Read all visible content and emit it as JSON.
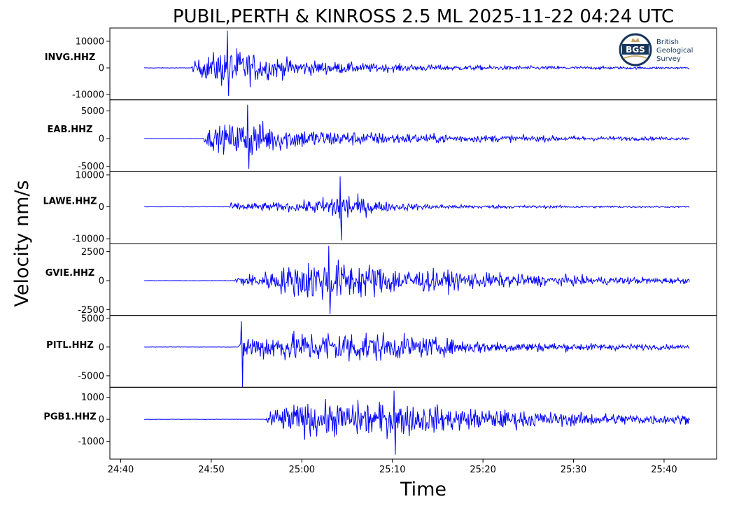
{
  "title": "PUBIL,PERTH & KINROSS 2.5 ML   2025-11-22 04:24 UTC",
  "ylabel": "Velocity nm/s",
  "xlabel": "Time",
  "logo": {
    "mark": "BGS",
    "lines": [
      "British",
      "Geological",
      "Survey"
    ]
  },
  "colors": {
    "trace": "#0000ff",
    "frame": "#000000",
    "logo_ring": "#17365d",
    "logo_accent": "#c8a96a"
  },
  "chart_data": {
    "type": "line",
    "x_unit": "minutes:seconds after 04:00 UTC",
    "xlim": [
      "24:38.8",
      "25:45.8"
    ],
    "x_ticks": [
      "24:40",
      "24:50",
      "25:00",
      "25:10",
      "25:20",
      "25:30",
      "25:40"
    ],
    "trace_start": "24:42.6",
    "trace_end": "25:42.8",
    "series": [
      {
        "name": "INVG.HHZ",
        "ylim": [
          -12000,
          15000
        ],
        "y_ticks": [
          10000,
          0,
          -10000
        ],
        "y_tick_labels": [
          "10000",
          "0",
          "-10000"
        ],
        "arrival": "24:47.8",
        "peak_time": "24:51.8",
        "peak_max": 14000,
        "peak_min": -10500,
        "envelope": [
          [
            0,
            250
          ],
          [
            0.3,
            2500
          ],
          [
            4,
            9000
          ],
          [
            8,
            5000
          ],
          [
            13,
            3000
          ],
          [
            20,
            1800
          ],
          [
            30,
            1000
          ],
          [
            45,
            600
          ],
          [
            55,
            400
          ]
        ]
      },
      {
        "name": "EAB.HHZ",
        "ylim": [
          -6000,
          7000
        ],
        "y_ticks": [
          5000,
          0,
          -5000
        ],
        "y_tick_labels": [
          "5000",
          "0",
          "-5000"
        ],
        "arrival": "24:49.1",
        "peak_time": "24:54.0",
        "peak_max": 6100,
        "peak_min": -5500,
        "envelope": [
          [
            0,
            60
          ],
          [
            0.4,
            1800
          ],
          [
            5,
            3800
          ],
          [
            9,
            2300
          ],
          [
            15,
            1500
          ],
          [
            25,
            900
          ],
          [
            40,
            500
          ],
          [
            54,
            280
          ]
        ]
      },
      {
        "name": "LAWE.HHZ",
        "ylim": [
          -11500,
          11000
        ],
        "y_ticks": [
          10000,
          0,
          -10000
        ],
        "y_tick_labels": [
          "10000",
          "0",
          "-10000"
        ],
        "arrival": "24:51.9",
        "peak_time": "25:04.2",
        "peak_max": 9500,
        "peak_min": -10500,
        "envelope": [
          [
            0,
            80
          ],
          [
            0.3,
            1300
          ],
          [
            8,
            1600
          ],
          [
            11,
            3500
          ],
          [
            12.3,
            7000
          ],
          [
            14,
            3500
          ],
          [
            18,
            1400
          ],
          [
            25,
            700
          ],
          [
            40,
            350
          ],
          [
            51,
            250
          ]
        ]
      },
      {
        "name": "GVIE.HHZ",
        "ylim": [
          -3000,
          3200
        ],
        "y_ticks": [
          2500,
          0,
          -2500
        ],
        "y_tick_labels": [
          "2500",
          "0",
          "-2500"
        ],
        "arrival": "24:52.3",
        "peak_time": "25:03.0",
        "peak_max": 3000,
        "peak_min": -2900,
        "envelope": [
          [
            0,
            40
          ],
          [
            0.5,
            450
          ],
          [
            4,
            900
          ],
          [
            9,
            2000
          ],
          [
            14,
            1700
          ],
          [
            20,
            1100
          ],
          [
            30,
            650
          ],
          [
            40,
            400
          ],
          [
            50,
            280
          ]
        ]
      },
      {
        "name": "PITL.HHZ",
        "ylim": [
          -7000,
          5500
        ],
        "y_ticks": [
          5000,
          0,
          -5000
        ],
        "y_tick_labels": [
          "5000",
          "0",
          "-5000"
        ],
        "arrival": "24:53.0",
        "peak_time": "24:53.3",
        "peak_max": 4500,
        "peak_min": -7000,
        "envelope": [
          [
            0,
            80
          ],
          [
            0.6,
            2400
          ],
          [
            5,
            2600
          ],
          [
            12,
            3300
          ],
          [
            17,
            2400
          ],
          [
            25,
            1300
          ],
          [
            35,
            800
          ],
          [
            49,
            400
          ]
        ]
      },
      {
        "name": "PGB1.HHZ",
        "ylim": [
          -1800,
          1450
        ],
        "y_ticks": [
          1000,
          0,
          -1000
        ],
        "y_tick_labels": [
          "1000",
          "0",
          "-1000"
        ],
        "arrival": "24:55.9",
        "peak_time": "25:10.2",
        "peak_max": 1300,
        "peak_min": -1600,
        "envelope": [
          [
            0,
            25
          ],
          [
            0.5,
            500
          ],
          [
            4,
            800
          ],
          [
            10,
            850
          ],
          [
            15,
            800
          ],
          [
            22,
            550
          ],
          [
            32,
            350
          ],
          [
            46,
            230
          ]
        ]
      }
    ]
  }
}
